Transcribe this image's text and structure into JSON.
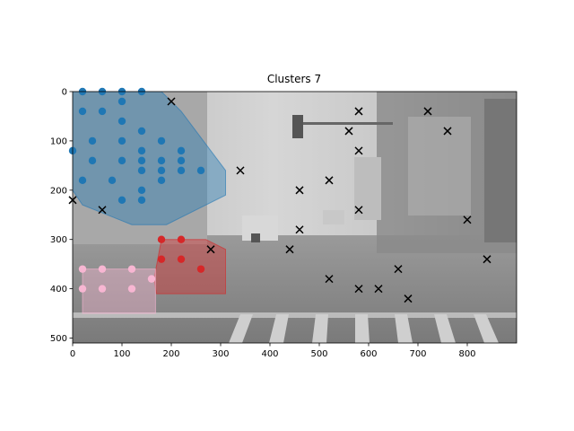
{
  "chart_data": {
    "type": "scatter",
    "title": "Clusters 7",
    "xlabel": "",
    "ylabel": "",
    "xlim": [
      0,
      900
    ],
    "ylim": [
      510,
      0
    ],
    "x_ticks": [
      0,
      100,
      200,
      300,
      400,
      500,
      600,
      700,
      800
    ],
    "y_ticks": [
      0,
      100,
      200,
      300,
      400,
      500
    ],
    "grid": false,
    "legend": "none",
    "background": "grayscale street scene image",
    "clusters": [
      {
        "color": "#1f77b4",
        "hull_fill": "#1f77b4",
        "points": [
          [
            20,
            0
          ],
          [
            60,
            0
          ],
          [
            100,
            0
          ],
          [
            140,
            0
          ],
          [
            20,
            40
          ],
          [
            60,
            40
          ],
          [
            100,
            20
          ],
          [
            100,
            60
          ],
          [
            140,
            80
          ],
          [
            40,
            100
          ],
          [
            100,
            100
          ],
          [
            180,
            100
          ],
          [
            40,
            140
          ],
          [
            100,
            140
          ],
          [
            140,
            140
          ],
          [
            180,
            140
          ],
          [
            220,
            140
          ],
          [
            140,
            120
          ],
          [
            220,
            120
          ],
          [
            0,
            120
          ],
          [
            20,
            180
          ],
          [
            80,
            180
          ],
          [
            140,
            160
          ],
          [
            180,
            160
          ],
          [
            220,
            160
          ],
          [
            260,
            160
          ],
          [
            140,
            200
          ],
          [
            180,
            180
          ],
          [
            100,
            220
          ],
          [
            140,
            220
          ]
        ],
        "hull": [
          [
            0,
            0
          ],
          [
            180,
            0
          ],
          [
            220,
            40
          ],
          [
            310,
            160
          ],
          [
            310,
            210
          ],
          [
            190,
            270
          ],
          [
            120,
            270
          ],
          [
            20,
            230
          ],
          [
            0,
            200
          ]
        ]
      },
      {
        "color": "#d62728",
        "hull_fill": "#d62728",
        "points": [
          [
            180,
            300
          ],
          [
            220,
            300
          ],
          [
            180,
            340
          ],
          [
            220,
            340
          ],
          [
            260,
            360
          ]
        ],
        "hull": [
          [
            180,
            300
          ],
          [
            270,
            300
          ],
          [
            310,
            320
          ],
          [
            310,
            410
          ],
          [
            170,
            410
          ],
          [
            165,
            380
          ]
        ]
      },
      {
        "color": "#f7b6d2",
        "hull_fill": "#f7b6d2",
        "points": [
          [
            20,
            360
          ],
          [
            60,
            360
          ],
          [
            120,
            360
          ],
          [
            20,
            400
          ],
          [
            60,
            400
          ],
          [
            120,
            400
          ],
          [
            160,
            380
          ]
        ],
        "hull": [
          [
            20,
            360
          ],
          [
            168,
            360
          ],
          [
            168,
            450
          ],
          [
            20,
            450
          ]
        ]
      },
      {
        "color": "#000000",
        "marker": "x",
        "points": [
          [
            200,
            20
          ],
          [
            0,
            220
          ],
          [
            60,
            240
          ],
          [
            280,
            320
          ],
          [
            340,
            160
          ],
          [
            440,
            320
          ],
          [
            460,
            200
          ],
          [
            460,
            280
          ],
          [
            520,
            180
          ],
          [
            520,
            380
          ],
          [
            560,
            80
          ],
          [
            580,
            40
          ],
          [
            580,
            120
          ],
          [
            580,
            240
          ],
          [
            580,
            400
          ],
          [
            620,
            400
          ],
          [
            660,
            360
          ],
          [
            680,
            420
          ],
          [
            720,
            40
          ],
          [
            760,
            80
          ],
          [
            800,
            260
          ],
          [
            840,
            340
          ]
        ]
      }
    ]
  }
}
